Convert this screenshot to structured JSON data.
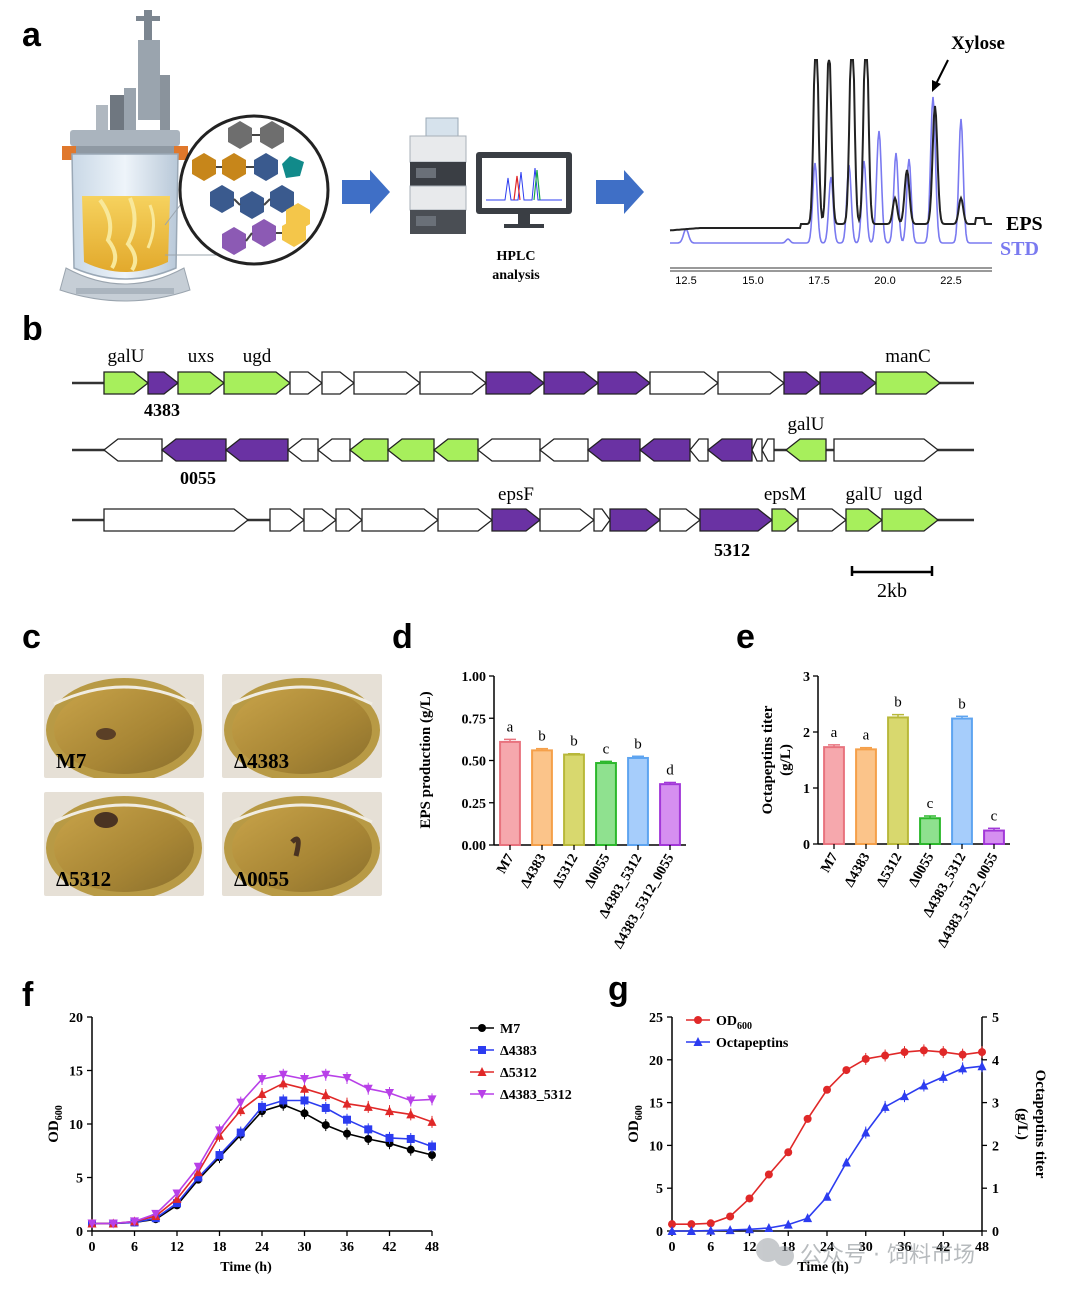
{
  "panels": {
    "a": "a",
    "b": "b",
    "c": "c",
    "d": "d",
    "e": "e",
    "f": "f",
    "g": "g"
  },
  "panel_a": {
    "hplc_line1": "HPLC",
    "hplc_line2": "analysis",
    "xylose": "Xylose",
    "eps": "EPS",
    "std": "STD",
    "ticks": [
      "12.5",
      "15.0",
      "17.5",
      "20.0",
      "22.5"
    ],
    "colors": {
      "eps": "#222222",
      "std": "#7a7af0",
      "arrow": "#3f6fc6"
    }
  },
  "panel_b": {
    "row1": {
      "labels": [
        "galU",
        "uxs",
        "ugd",
        "manC"
      ],
      "below": "4383"
    },
    "row2": {
      "labels": [
        "galU"
      ],
      "below": "0055"
    },
    "row3": {
      "labels": [
        "epsF",
        "epsM",
        "galU",
        "ugd"
      ],
      "below": "5312"
    },
    "scale": "2kb",
    "colors": {
      "green": "#a7ef5c",
      "purple": "#6a32a3",
      "white": "#ffffff"
    }
  },
  "panel_c": {
    "photos": [
      {
        "label": "M7"
      },
      {
        "label": "Δ4383"
      },
      {
        "label": "Δ5312"
      },
      {
        "label": "Δ0055"
      }
    ]
  },
  "chart_data": [
    {
      "id": "d",
      "type": "bar",
      "categories": [
        "M7",
        "Δ4383",
        "Δ5312",
        "Δ0055",
        "Δ4383_5312",
        "Δ4383_5312_0055"
      ],
      "values": [
        0.61,
        0.56,
        0.535,
        0.485,
        0.515,
        0.36
      ],
      "errors": [
        0.015,
        0.01,
        0.005,
        0.01,
        0.01,
        0.01
      ],
      "letters": [
        "a",
        "b",
        "b",
        "c",
        "b",
        "d"
      ],
      "ylabel": "EPS production (g/L)",
      "ylim": [
        0,
        1.0
      ],
      "yticks": [
        "0.00",
        "0.25",
        "0.50",
        "0.75",
        "1.00"
      ],
      "colors": [
        "#f6a8ad",
        "#fbc48a",
        "#d8d86e",
        "#8fe18f",
        "#a6cdfb",
        "#d58ff0"
      ],
      "edge_colors": [
        "#e8737e",
        "#f5a04a",
        "#b8b83a",
        "#2cb82c",
        "#5ea4f0",
        "#a238d8"
      ]
    },
    {
      "id": "e",
      "type": "bar",
      "categories": [
        "M7",
        "Δ4383",
        "Δ5312",
        "Δ0055",
        "Δ4383_5312",
        "Δ4383_5312_0055"
      ],
      "values": [
        1.73,
        1.69,
        2.26,
        0.46,
        2.24,
        0.24
      ],
      "errors": [
        0.04,
        0.03,
        0.05,
        0.04,
        0.04,
        0.04
      ],
      "letters": [
        "a",
        "a",
        "b",
        "c",
        "b",
        "c"
      ],
      "ylabel_line1": "Octapeptins titer",
      "ylabel_line2": "(g/L)",
      "ylim": [
        0,
        3
      ],
      "yticks": [
        "0",
        "1",
        "2",
        "3"
      ],
      "colors": [
        "#f6a8ad",
        "#fbc48a",
        "#d8d86e",
        "#8fe18f",
        "#a6cdfb",
        "#d58ff0"
      ],
      "edge_colors": [
        "#e8737e",
        "#f5a04a",
        "#b8b83a",
        "#2cb82c",
        "#5ea4f0",
        "#a238d8"
      ]
    },
    {
      "id": "f",
      "type": "line",
      "x": [
        0,
        3,
        6,
        9,
        12,
        15,
        18,
        21,
        24,
        27,
        30,
        33,
        36,
        39,
        42,
        45,
        48
      ],
      "xticks": [
        "0",
        "6",
        "12",
        "18",
        "24",
        "30",
        "36",
        "42",
        "48"
      ],
      "yticks": [
        "0",
        "5",
        "10",
        "15",
        "20"
      ],
      "xlim": [
        0,
        48
      ],
      "ylim": [
        0,
        20
      ],
      "xlabel": "Time (h)",
      "ylabel": "OD600",
      "series": [
        {
          "name": "M7",
          "color": "#000000",
          "marker": "circle",
          "values": [
            0.7,
            0.7,
            0.8,
            1.1,
            2.4,
            4.8,
            6.9,
            9.0,
            11.2,
            11.8,
            11.0,
            9.9,
            9.1,
            8.6,
            8.2,
            7.6,
            7.1
          ]
        },
        {
          "name": "Δ4383",
          "color": "#2c3cf0",
          "marker": "square",
          "values": [
            0.7,
            0.7,
            0.8,
            1.2,
            2.6,
            5.0,
            7.1,
            9.2,
            11.6,
            12.2,
            12.2,
            11.5,
            10.4,
            9.5,
            8.7,
            8.6,
            7.9
          ]
        },
        {
          "name": "Δ5312",
          "color": "#e02828",
          "marker": "triangle",
          "values": [
            0.7,
            0.7,
            0.9,
            1.4,
            3.0,
            5.5,
            8.9,
            11.3,
            12.8,
            13.8,
            13.3,
            12.7,
            11.9,
            11.6,
            11.2,
            10.9,
            10.2
          ]
        },
        {
          "name": "Δ4383_5312",
          "color": "#b840e8",
          "marker": "triangle-down",
          "values": [
            0.7,
            0.7,
            0.9,
            1.6,
            3.5,
            6.0,
            9.4,
            12.0,
            14.2,
            14.6,
            14.2,
            14.6,
            14.3,
            13.3,
            12.9,
            12.2,
            12.3
          ]
        }
      ]
    },
    {
      "id": "g",
      "type": "line",
      "x": [
        0,
        3,
        6,
        9,
        12,
        15,
        18,
        21,
        24,
        27,
        30,
        33,
        36,
        39,
        42,
        45,
        48
      ],
      "xticks": [
        "0",
        "6",
        "12",
        "18",
        "24",
        "30",
        "36",
        "42",
        "48"
      ],
      "yticks_left": [
        "0",
        "5",
        "10",
        "15",
        "20",
        "25"
      ],
      "yticks_right": [
        "0",
        "1",
        "2",
        "3",
        "4",
        "5"
      ],
      "xlim": [
        0,
        48
      ],
      "ylim_left": [
        0,
        25
      ],
      "ylim_right": [
        0,
        5
      ],
      "xlabel": "Time (h)",
      "ylabel_left": "OD600",
      "ylabel_right_line1": "Octapeptins titer",
      "ylabel_right_line2": "(g/L)",
      "series": [
        {
          "name": "OD600",
          "axis": "left",
          "color": "#e02828",
          "marker": "circle",
          "values": [
            0.8,
            0.8,
            0.9,
            1.7,
            3.8,
            6.6,
            9.2,
            13.1,
            16.5,
            18.8,
            20.1,
            20.5,
            20.9,
            21.1,
            20.9,
            20.6,
            20.9
          ]
        },
        {
          "name": "Octapeptins",
          "axis": "right",
          "color": "#2c3cf0",
          "marker": "triangle",
          "values": [
            0.0,
            0.0,
            0.01,
            0.02,
            0.04,
            0.07,
            0.15,
            0.3,
            0.8,
            1.6,
            2.3,
            2.9,
            3.15,
            3.4,
            3.6,
            3.8,
            3.85
          ]
        }
      ]
    }
  ],
  "watermark": "公众号 · 饲料市场"
}
